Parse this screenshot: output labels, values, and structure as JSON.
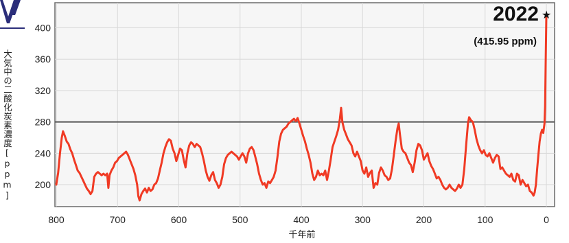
{
  "chart_data": {
    "type": "line",
    "title": "",
    "xlabel": "千年前",
    "ylabel": "大気中の二酸化炭素濃度[ppm]",
    "xlim": [
      800,
      0
    ],
    "ylim": [
      172,
      432
    ],
    "x_ticks": [
      800,
      700,
      600,
      500,
      400,
      300,
      200,
      100,
      0
    ],
    "y_ticks": [
      200,
      240,
      280,
      320,
      360,
      400
    ],
    "grid": true,
    "reference_line": 280,
    "annotation": {
      "year": "2022",
      "marker": "★",
      "value_text": "(415.95 ppm)",
      "x": 0,
      "y": 416
    },
    "series": [
      {
        "color": "#f03a24",
        "points": [
          [
            800,
            200
          ],
          [
            797,
            215
          ],
          [
            794,
            240
          ],
          [
            791,
            260
          ],
          [
            789,
            268
          ],
          [
            786,
            262
          ],
          [
            783,
            255
          ],
          [
            780,
            252
          ],
          [
            777,
            245
          ],
          [
            774,
            240
          ],
          [
            771,
            232
          ],
          [
            768,
            225
          ],
          [
            765,
            218
          ],
          [
            762,
            215
          ],
          [
            759,
            210
          ],
          [
            756,
            205
          ],
          [
            753,
            200
          ],
          [
            750,
            195
          ],
          [
            747,
            192
          ],
          [
            744,
            188
          ],
          [
            741,
            192
          ],
          [
            738,
            210
          ],
          [
            735,
            214
          ],
          [
            732,
            216
          ],
          [
            729,
            214
          ],
          [
            726,
            212
          ],
          [
            723,
            214
          ],
          [
            720,
            212
          ],
          [
            717,
            214
          ],
          [
            715,
            196
          ],
          [
            713,
            212
          ],
          [
            710,
            218
          ],
          [
            707,
            222
          ],
          [
            704,
            228
          ],
          [
            701,
            230
          ],
          [
            698,
            234
          ],
          [
            695,
            236
          ],
          [
            692,
            238
          ],
          [
            689,
            240
          ],
          [
            686,
            242
          ],
          [
            683,
            238
          ],
          [
            680,
            232
          ],
          [
            677,
            226
          ],
          [
            674,
            220
          ],
          [
            671,
            212
          ],
          [
            668,
            200
          ],
          [
            666,
            185
          ],
          [
            664,
            180
          ],
          [
            661,
            188
          ],
          [
            658,
            192
          ],
          [
            655,
            195
          ],
          [
            652,
            190
          ],
          [
            649,
            196
          ],
          [
            646,
            192
          ],
          [
            643,
            194
          ],
          [
            640,
            200
          ],
          [
            637,
            202
          ],
          [
            634,
            208
          ],
          [
            631,
            218
          ],
          [
            628,
            228
          ],
          [
            625,
            240
          ],
          [
            622,
            248
          ],
          [
            619,
            254
          ],
          [
            616,
            258
          ],
          [
            613,
            256
          ],
          [
            610,
            246
          ],
          [
            607,
            240
          ],
          [
            604,
            230
          ],
          [
            601,
            238
          ],
          [
            598,
            246
          ],
          [
            595,
            244
          ],
          [
            592,
            232
          ],
          [
            589,
            222
          ],
          [
            586,
            240
          ],
          [
            583,
            250
          ],
          [
            580,
            254
          ],
          [
            577,
            252
          ],
          [
            574,
            248
          ],
          [
            571,
            252
          ],
          [
            568,
            250
          ],
          [
            565,
            248
          ],
          [
            562,
            240
          ],
          [
            559,
            230
          ],
          [
            556,
            218
          ],
          [
            553,
            210
          ],
          [
            550,
            205
          ],
          [
            547,
            212
          ],
          [
            544,
            216
          ],
          [
            541,
            206
          ],
          [
            538,
            202
          ],
          [
            535,
            196
          ],
          [
            532,
            200
          ],
          [
            529,
            210
          ],
          [
            526,
            226
          ],
          [
            523,
            234
          ],
          [
            520,
            238
          ],
          [
            517,
            240
          ],
          [
            514,
            242
          ],
          [
            511,
            240
          ],
          [
            508,
            238
          ],
          [
            505,
            236
          ],
          [
            502,
            232
          ],
          [
            499,
            236
          ],
          [
            496,
            240
          ],
          [
            493,
            236
          ],
          [
            490,
            228
          ],
          [
            487,
            240
          ],
          [
            484,
            246
          ],
          [
            481,
            248
          ],
          [
            478,
            244
          ],
          [
            475,
            235
          ],
          [
            472,
            226
          ],
          [
            469,
            214
          ],
          [
            466,
            206
          ],
          [
            463,
            200
          ],
          [
            460,
            202
          ],
          [
            457,
            196
          ],
          [
            454,
            204
          ],
          [
            451,
            202
          ],
          [
            448,
            206
          ],
          [
            445,
            210
          ],
          [
            442,
            218
          ],
          [
            439,
            235
          ],
          [
            436,
            255
          ],
          [
            433,
            265
          ],
          [
            430,
            270
          ],
          [
            427,
            272
          ],
          [
            424,
            274
          ],
          [
            421,
            278
          ],
          [
            418,
            280
          ],
          [
            415,
            282
          ],
          [
            412,
            284
          ],
          [
            409,
            281
          ],
          [
            406,
            285
          ],
          [
            403,
            278
          ],
          [
            400,
            270
          ],
          [
            397,
            262
          ],
          [
            394,
            255
          ],
          [
            391,
            246
          ],
          [
            388,
            238
          ],
          [
            385,
            228
          ],
          [
            382,
            214
          ],
          [
            379,
            206
          ],
          [
            376,
            210
          ],
          [
            373,
            218
          ],
          [
            370,
            212
          ],
          [
            367,
            214
          ],
          [
            364,
            212
          ],
          [
            361,
            218
          ],
          [
            358,
            206
          ],
          [
            355,
            218
          ],
          [
            352,
            232
          ],
          [
            349,
            248
          ],
          [
            346,
            255
          ],
          [
            343,
            262
          ],
          [
            340,
            270
          ],
          [
            337,
            284
          ],
          [
            335,
            298
          ],
          [
            333,
            280
          ],
          [
            330,
            270
          ],
          [
            327,
            264
          ],
          [
            324,
            258
          ],
          [
            321,
            254
          ],
          [
            318,
            250
          ],
          [
            315,
            240
          ],
          [
            312,
            236
          ],
          [
            309,
            242
          ],
          [
            306,
            236
          ],
          [
            303,
            230
          ],
          [
            300,
            218
          ],
          [
            297,
            214
          ],
          [
            294,
            222
          ],
          [
            291,
            210
          ],
          [
            288,
            215
          ],
          [
            285,
            218
          ],
          [
            282,
            196
          ],
          [
            279,
            202
          ],
          [
            276,
            200
          ],
          [
            273,
            215
          ],
          [
            270,
            222
          ],
          [
            267,
            218
          ],
          [
            264,
            212
          ],
          [
            261,
            210
          ],
          [
            258,
            206
          ],
          [
            255,
            208
          ],
          [
            252,
            220
          ],
          [
            249,
            238
          ],
          [
            246,
            256
          ],
          [
            243,
            272
          ],
          [
            241,
            278
          ],
          [
            239,
            264
          ],
          [
            236,
            246
          ],
          [
            233,
            242
          ],
          [
            230,
            240
          ],
          [
            227,
            234
          ],
          [
            224,
            228
          ],
          [
            221,
            225
          ],
          [
            218,
            216
          ],
          [
            215,
            228
          ],
          [
            212,
            244
          ],
          [
            209,
            252
          ],
          [
            206,
            250
          ],
          [
            203,
            244
          ],
          [
            200,
            232
          ],
          [
            197,
            236
          ],
          [
            194,
            240
          ],
          [
            191,
            230
          ],
          [
            188,
            224
          ],
          [
            185,
            220
          ],
          [
            182,
            214
          ],
          [
            179,
            208
          ],
          [
            176,
            210
          ],
          [
            173,
            206
          ],
          [
            170,
            200
          ],
          [
            167,
            196
          ],
          [
            164,
            194
          ],
          [
            161,
            196
          ],
          [
            158,
            200
          ],
          [
            155,
            196
          ],
          [
            152,
            194
          ],
          [
            149,
            192
          ],
          [
            146,
            195
          ],
          [
            143,
            200
          ],
          [
            140,
            196
          ],
          [
            137,
            200
          ],
          [
            134,
            220
          ],
          [
            131,
            250
          ],
          [
            128,
            278
          ],
          [
            126,
            286
          ],
          [
            123,
            282
          ],
          [
            120,
            280
          ],
          [
            117,
            270
          ],
          [
            114,
            258
          ],
          [
            111,
            250
          ],
          [
            108,
            244
          ],
          [
            105,
            240
          ],
          [
            102,
            244
          ],
          [
            99,
            238
          ],
          [
            96,
            236
          ],
          [
            93,
            240
          ],
          [
            90,
            234
          ],
          [
            87,
            228
          ],
          [
            84,
            234
          ],
          [
            81,
            238
          ],
          [
            78,
            236
          ],
          [
            75,
            220
          ],
          [
            72,
            222
          ],
          [
            69,
            218
          ],
          [
            66,
            214
          ],
          [
            63,
            212
          ],
          [
            60,
            210
          ],
          [
            57,
            214
          ],
          [
            54,
            206
          ],
          [
            51,
            204
          ],
          [
            48,
            214
          ],
          [
            45,
            212
          ],
          [
            42,
            200
          ],
          [
            39,
            206
          ],
          [
            36,
            202
          ],
          [
            33,
            198
          ],
          [
            30,
            200
          ],
          [
            27,
            192
          ],
          [
            24,
            190
          ],
          [
            21,
            186
          ],
          [
            19,
            190
          ],
          [
            17,
            200
          ],
          [
            15,
            220
          ],
          [
            13,
            238
          ],
          [
            11,
            255
          ],
          [
            9,
            265
          ],
          [
            7,
            270
          ],
          [
            5,
            266
          ],
          [
            3,
            278
          ],
          [
            2,
            300
          ],
          [
            1,
            360
          ],
          [
            0,
            416
          ]
        ]
      }
    ]
  }
}
